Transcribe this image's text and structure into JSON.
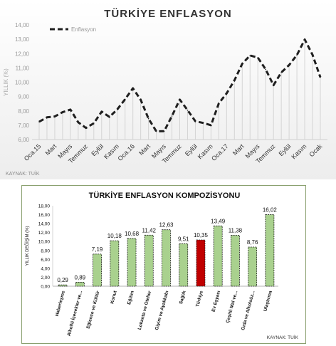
{
  "chart_data": [
    {
      "type": "line",
      "title": "TÜRKİYE ENFLASYON",
      "ylabel": "YILLIK (%)",
      "source": "KAYNAK: TUİK",
      "ylim": [
        6,
        14
      ],
      "yticks": [
        "6,00",
        "7,00",
        "8,00",
        "9,00",
        "10,00",
        "11,00",
        "12,00",
        "13,00",
        "14,00"
      ],
      "xtick_labels": [
        "Oca.15",
        "Mart",
        "Mayıs",
        "Temmuz",
        "Eylül",
        "Kasım",
        "Oca.16",
        "Mart",
        "Mayıs",
        "Temmuz",
        "Eylül",
        "Kasım",
        "Oca.17",
        "Mart",
        "Mayıs",
        "Temmuz",
        "Eylül",
        "Kasım",
        "Ocak"
      ],
      "legend": "top-left",
      "grid": false,
      "series": [
        {
          "name": "Enflasyon",
          "color": "#1f1f1f",
          "values": [
            7.24,
            7.55,
            7.61,
            7.91,
            8.09,
            7.2,
            6.81,
            7.14,
            7.95,
            7.58,
            8.1,
            8.81,
            9.58,
            8.78,
            7.46,
            6.57,
            6.58,
            7.64,
            8.79,
            8.05,
            7.28,
            7.16,
            7.0,
            8.53,
            9.22,
            10.13,
            11.29,
            11.87,
            11.72,
            10.9,
            9.79,
            10.68,
            11.2,
            11.9,
            12.98,
            11.92,
            10.35
          ]
        }
      ]
    },
    {
      "type": "bar",
      "title": "TÜRKİYE ENFLASYON KOMPOZİSYONU",
      "ylabel": "YILLIK DEĞİŞİM (%)",
      "source": "KAYNAK: TUİK",
      "ylim": [
        0,
        18
      ],
      "yticks": [
        "0,00",
        "2,00",
        "4,00",
        "6,00",
        "8,00",
        "10,00",
        "12,00",
        "14,00",
        "16,00",
        "18,00"
      ],
      "categories": [
        "Haberleşme",
        "Alkollü İçecekler ve...",
        "Eğlence ve Kültür",
        "Konut",
        "Eğitim",
        "Lokanta ve Oteller",
        "Giyim ve Ayakkabı",
        "Sağlık",
        "Türkiye",
        "Ev Eşyası",
        "Çeşitli Mal ve...",
        "Gıda ve Alkolsüz...",
        "Ulaştırma"
      ],
      "values": [
        0.29,
        0.89,
        7.19,
        10.18,
        10.68,
        11.42,
        12.63,
        9.51,
        10.35,
        13.49,
        11.38,
        8.76,
        16.02
      ],
      "value_labels": [
        "0,29",
        "0,89",
        "7,19",
        "10,18",
        "10,68",
        "11,42",
        "12,63",
        "9,51",
        "10,35",
        "13,49",
        "11,38",
        "8,76",
        "16,02"
      ],
      "colors": {
        "default": "#a9d18e",
        "highlight": "#c00000",
        "highlight_category": "Türkiye"
      },
      "grid": false
    }
  ]
}
